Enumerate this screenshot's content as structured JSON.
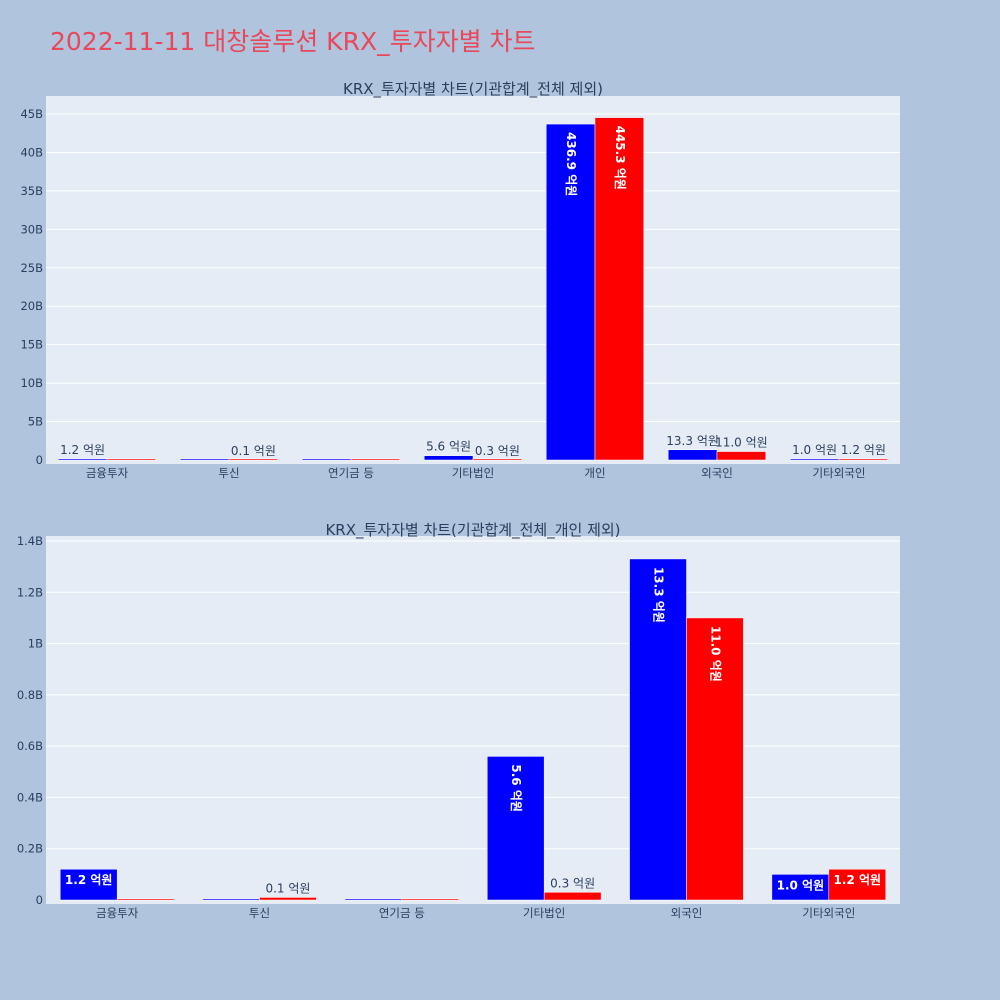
{
  "page": {
    "title": "2022-11-11 대창솔루션 KRX_투자자별 차트"
  },
  "colors": {
    "background": "#b0c4de",
    "plot_background": "#e5ecf6",
    "sell": "#0000ff",
    "buy": "#ff0000",
    "title": "#e8485a"
  },
  "chart_data": [
    {
      "type": "bar",
      "title": "KRX_투자자별 차트(기관합계_전체 제외)",
      "categories": [
        "금융투자",
        "투신",
        "연기금 등",
        "기타법인",
        "개인",
        "외국인",
        "기타외국인"
      ],
      "ylim": [
        0,
        45000000000
      ],
      "yticks": [
        0,
        5000000000,
        10000000000,
        15000000000,
        20000000000,
        25000000000,
        30000000000,
        35000000000,
        40000000000,
        45000000000
      ],
      "ytick_labels": [
        "0",
        "5B",
        "10B",
        "15B",
        "20B",
        "25B",
        "30B",
        "35B",
        "40B",
        "45B"
      ],
      "series": [
        {
          "color": "#0000ff",
          "values": [
            120000000,
            0,
            0,
            560000000,
            43690000000,
            1330000000,
            100000000
          ],
          "labels": [
            "1.2 억원",
            "",
            "",
            "5.6 억원",
            "436.9 억원",
            "13.3 억원",
            "1.0 억원"
          ]
        },
        {
          "color": "#ff0000",
          "values": [
            0,
            10000000,
            0,
            30000000,
            44530000000,
            1100000000,
            120000000
          ],
          "labels": [
            "",
            "0.1 억원",
            "",
            "0.3 억원",
            "445.3 억원",
            "11.0 억원",
            "1.2 억원"
          ]
        }
      ],
      "grid": true
    },
    {
      "type": "bar",
      "title": "KRX_투자자별 차트(기관합계_전체_개인 제외)",
      "categories": [
        "금융투자",
        "투신",
        "연기금 등",
        "기타법인",
        "외국인",
        "기타외국인"
      ],
      "ylim": [
        0,
        1400000000
      ],
      "yticks": [
        0,
        200000000,
        400000000,
        600000000,
        800000000,
        1000000000,
        1200000000,
        1400000000
      ],
      "ytick_labels": [
        "0",
        "0.2B",
        "0.4B",
        "0.6B",
        "0.8B",
        "1B",
        "1.2B",
        "1.4B"
      ],
      "series": [
        {
          "color": "#0000ff",
          "values": [
            120000000,
            0,
            0,
            560000000,
            1330000000,
            100000000
          ],
          "labels": [
            "1.2 억원",
            "",
            "",
            "5.6 억원",
            "13.3 억원",
            "1.0 억원"
          ]
        },
        {
          "color": "#ff0000",
          "values": [
            0,
            10000000,
            0,
            30000000,
            1100000000,
            120000000
          ],
          "labels": [
            "",
            "0.1 억원",
            "",
            "0.3 억원",
            "11.0 억원",
            "1.2 억원"
          ]
        }
      ],
      "grid": true
    }
  ]
}
